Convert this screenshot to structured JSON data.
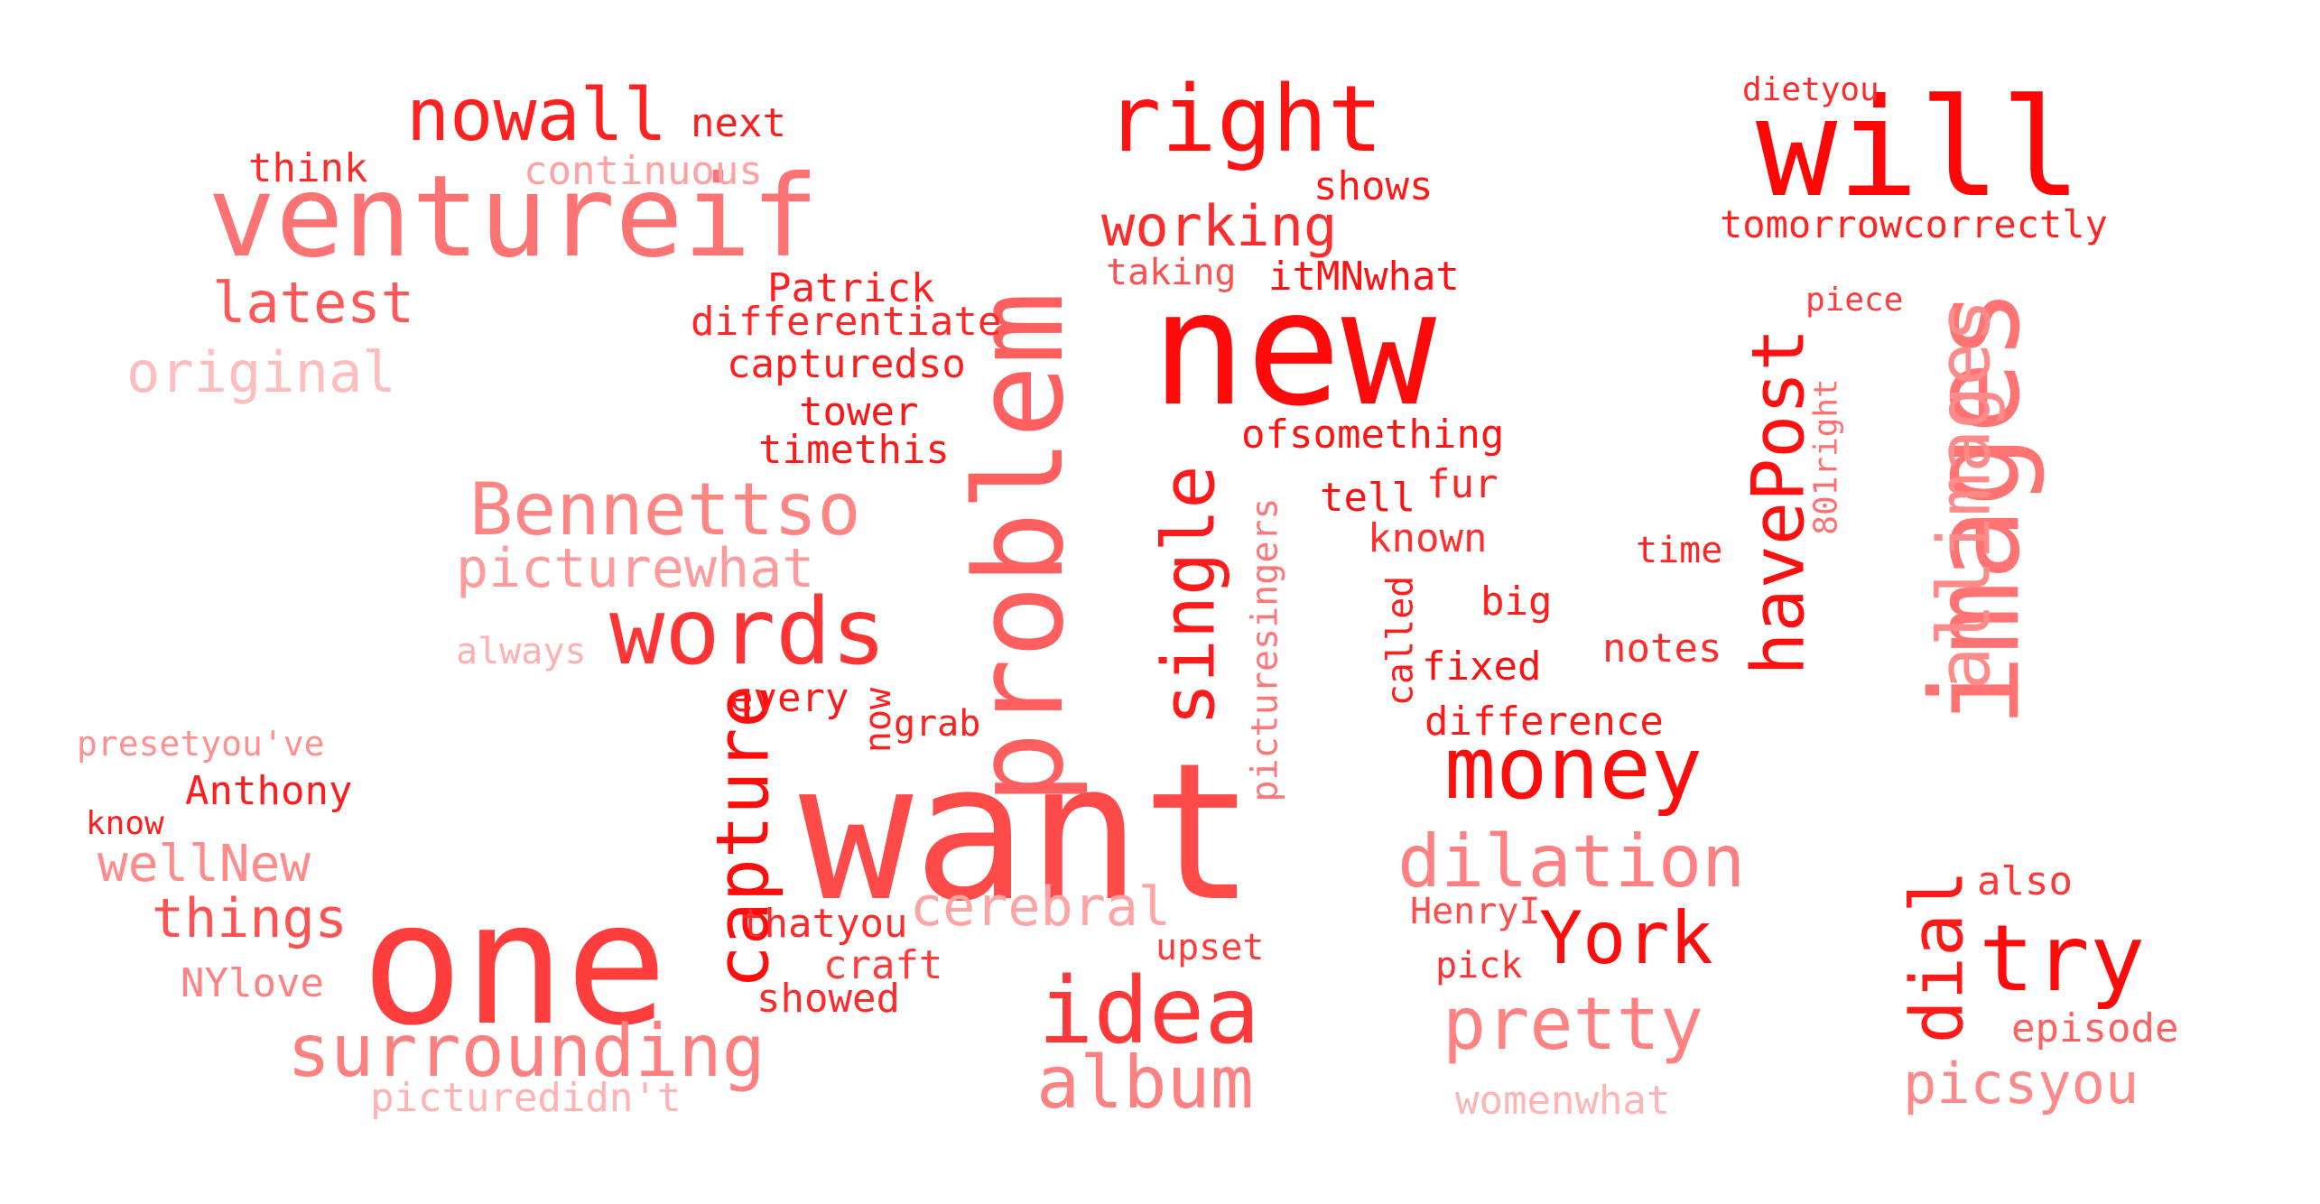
{
  "words": [
    {
      "text": "want",
      "color": "#ff4a4a"
    },
    {
      "text": "new",
      "color": "#ff0a0a"
    },
    {
      "text": "one",
      "color": "#ff3d3d"
    },
    {
      "text": "problem",
      "color": "#ff5f5f"
    },
    {
      "text": "images",
      "color": "#ff7373"
    },
    {
      "text": "will",
      "color": "#ff0505"
    },
    {
      "text": "ventureif",
      "color": "#fd7272"
    },
    {
      "text": "right",
      "color": "#ff1212"
    },
    {
      "text": "nowall",
      "color": "#ff2020"
    },
    {
      "text": "next",
      "color": "#ff1c1c"
    },
    {
      "text": "think",
      "color": "#ff2a2a"
    },
    {
      "text": "continuous",
      "color": "#ffa2a2"
    },
    {
      "text": "latest",
      "color": "#ff5858"
    },
    {
      "text": "original",
      "color": "#ffbdbd"
    },
    {
      "text": "Patrick",
      "color": "#ff1f1f"
    },
    {
      "text": "differentiate",
      "color": "#ff2727"
    },
    {
      "text": "capturedso",
      "color": "#ff1e1e"
    },
    {
      "text": "tower",
      "color": "#ff1515"
    },
    {
      "text": "timethis",
      "color": "#ff1a1a"
    },
    {
      "text": "working",
      "color": "#ff2c2c"
    },
    {
      "text": "shows",
      "color": "#ff1818"
    },
    {
      "text": "taking",
      "color": "#ff5050"
    },
    {
      "text": "itMNwhat",
      "color": "#ff1111"
    },
    {
      "text": "dietyou",
      "color": "#ff2b2b"
    },
    {
      "text": "tomorrowcorrectly",
      "color": "#ff2323"
    },
    {
      "text": "piece",
      "color": "#ff3c3c"
    },
    {
      "text": "Bennettso",
      "color": "#ff8585"
    },
    {
      "text": "picturewhat",
      "color": "#ff9b9b"
    },
    {
      "text": "words",
      "color": "#ff3434"
    },
    {
      "text": "always",
      "color": "#ffb0b0"
    },
    {
      "text": "capture",
      "color": "#ff0d0d"
    },
    {
      "text": "every",
      "color": "#ff1919"
    },
    {
      "text": "now",
      "color": "#ff2020"
    },
    {
      "text": "grab",
      "color": "#ff2121"
    },
    {
      "text": "single",
      "color": "#ff1b1b"
    },
    {
      "text": "ofsomething",
      "color": "#ff1414"
    },
    {
      "text": "tell",
      "color": "#ff0f0f"
    },
    {
      "text": "fur",
      "color": "#ff2626"
    },
    {
      "text": "known",
      "color": "#ff2f2f"
    },
    {
      "text": "picturesingers",
      "color": "#ff7777"
    },
    {
      "text": "called",
      "color": "#ff1f1f"
    },
    {
      "text": "big",
      "color": "#ff1d1d"
    },
    {
      "text": "fixed",
      "color": "#ff1010"
    },
    {
      "text": "difference",
      "color": "#ff1a1a"
    },
    {
      "text": "notes",
      "color": "#ff2d2d"
    },
    {
      "text": "time",
      "color": "#ff2525"
    },
    {
      "text": "havePost",
      "color": "#ff1010"
    },
    {
      "text": "801right",
      "color": "#ff7070"
    },
    {
      "text": "allimages",
      "color": "#ff8a8a"
    },
    {
      "text": "money",
      "color": "#ff0d0d"
    },
    {
      "text": "presetyou've",
      "color": "#ff9090"
    },
    {
      "text": "Anthony",
      "color": "#ff1c1c"
    },
    {
      "text": "know",
      "color": "#ff1d1d"
    },
    {
      "text": "wellNew",
      "color": "#ff8b8b"
    },
    {
      "text": "things",
      "color": "#ff5252"
    },
    {
      "text": "NYlove",
      "color": "#ff8181"
    },
    {
      "text": "surrounding",
      "color": "#ff7e7e"
    },
    {
      "text": "picturedidn't",
      "color": "#ffb3b3"
    },
    {
      "text": "thatyou",
      "color": "#ff2a2a"
    },
    {
      "text": "craft",
      "color": "#ff3b3b"
    },
    {
      "text": "showed",
      "color": "#ff2b2b"
    },
    {
      "text": "cerebral",
      "color": "#ffa4a4"
    },
    {
      "text": "upset",
      "color": "#ff3a3a"
    },
    {
      "text": "idea",
      "color": "#ff3939"
    },
    {
      "text": "album",
      "color": "#ff8080"
    },
    {
      "text": "dilation",
      "color": "#ff8080"
    },
    {
      "text": "HenryI",
      "color": "#ff4d4d"
    },
    {
      "text": "York",
      "color": "#ff0c0c"
    },
    {
      "text": "pick",
      "color": "#ff3030"
    },
    {
      "text": "pretty",
      "color": "#ff8181"
    },
    {
      "text": "womenwhat",
      "color": "#ffb5b5"
    },
    {
      "text": "dial",
      "color": "#ff1a1a"
    },
    {
      "text": "try",
      "color": "#ff0a0a"
    },
    {
      "text": "also",
      "color": "#ff3838"
    },
    {
      "text": "episode",
      "color": "#ff6161"
    },
    {
      "text": "picsyou",
      "color": "#ff8989"
    }
  ]
}
